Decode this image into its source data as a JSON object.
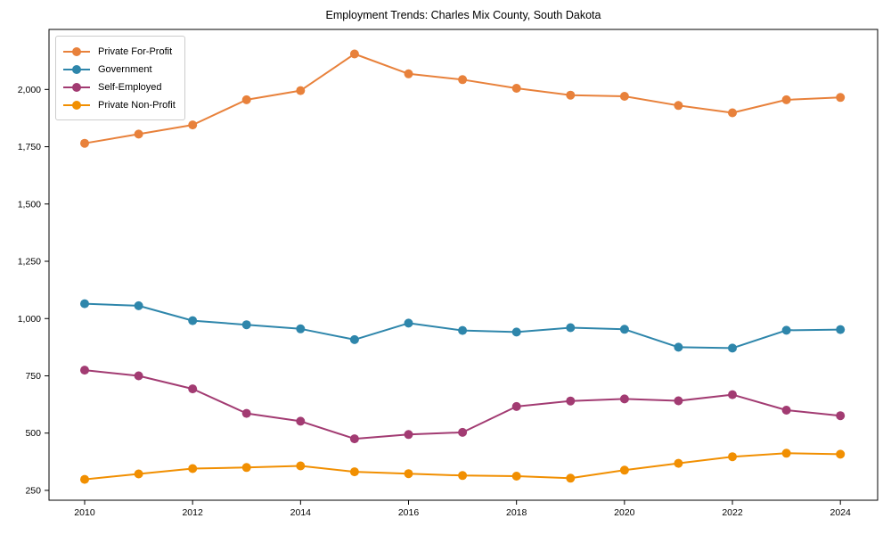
{
  "figure": {
    "background": "#ffffff",
    "axis_color": "#000000",
    "tick_label_color": "#000000"
  },
  "chart_data": {
    "type": "line",
    "title": "Employment Trends: Charles Mix County, South Dakota",
    "xlabel": "",
    "ylabel": "",
    "grid": false,
    "legend_position": "upper-left",
    "x": [
      2010,
      2011,
      2012,
      2013,
      2014,
      2015,
      2016,
      2017,
      2018,
      2019,
      2020,
      2021,
      2022,
      2023,
      2024
    ],
    "series": [
      {
        "name": "Private For-Profit",
        "color": "#e8813b",
        "values": [
          1765,
          1805,
          1845,
          1955,
          1995,
          2155,
          2068,
          2043,
          2005,
          1975,
          1970,
          1930,
          1898,
          1955,
          1965
        ]
      },
      {
        "name": "Government",
        "color": "#2e86ab",
        "values": [
          1065,
          1056,
          991,
          973,
          955,
          908,
          980,
          948,
          941,
          960,
          953,
          875,
          871,
          949,
          952
        ]
      },
      {
        "name": "Self-Employed",
        "color": "#a23b72",
        "values": [
          775,
          750,
          693,
          586,
          552,
          475,
          494,
          503,
          616,
          640,
          649,
          641,
          668,
          600,
          576
        ]
      },
      {
        "name": "Private Non-Profit",
        "color": "#f18f01",
        "values": [
          298,
          322,
          345,
          350,
          357,
          331,
          323,
          315,
          312,
          303,
          338,
          368,
          397,
          412,
          408
        ]
      }
    ],
    "xlim": [
      2009.34,
      2024.69
    ],
    "ylim": [
      207,
      2262
    ],
    "xticks": {
      "values": [
        2010,
        2012,
        2014,
        2016,
        2018,
        2020,
        2022,
        2024
      ],
      "labels": [
        "2010",
        "2012",
        "2014",
        "2016",
        "2018",
        "2020",
        "2022",
        "2024"
      ]
    },
    "yticks": {
      "values": [
        250,
        500,
        750,
        1000,
        1250,
        1500,
        1750,
        2000
      ],
      "labels": [
        "250",
        "500",
        "750",
        "1,000",
        "1,250",
        "1,500",
        "1,750",
        "2,000"
      ]
    }
  }
}
